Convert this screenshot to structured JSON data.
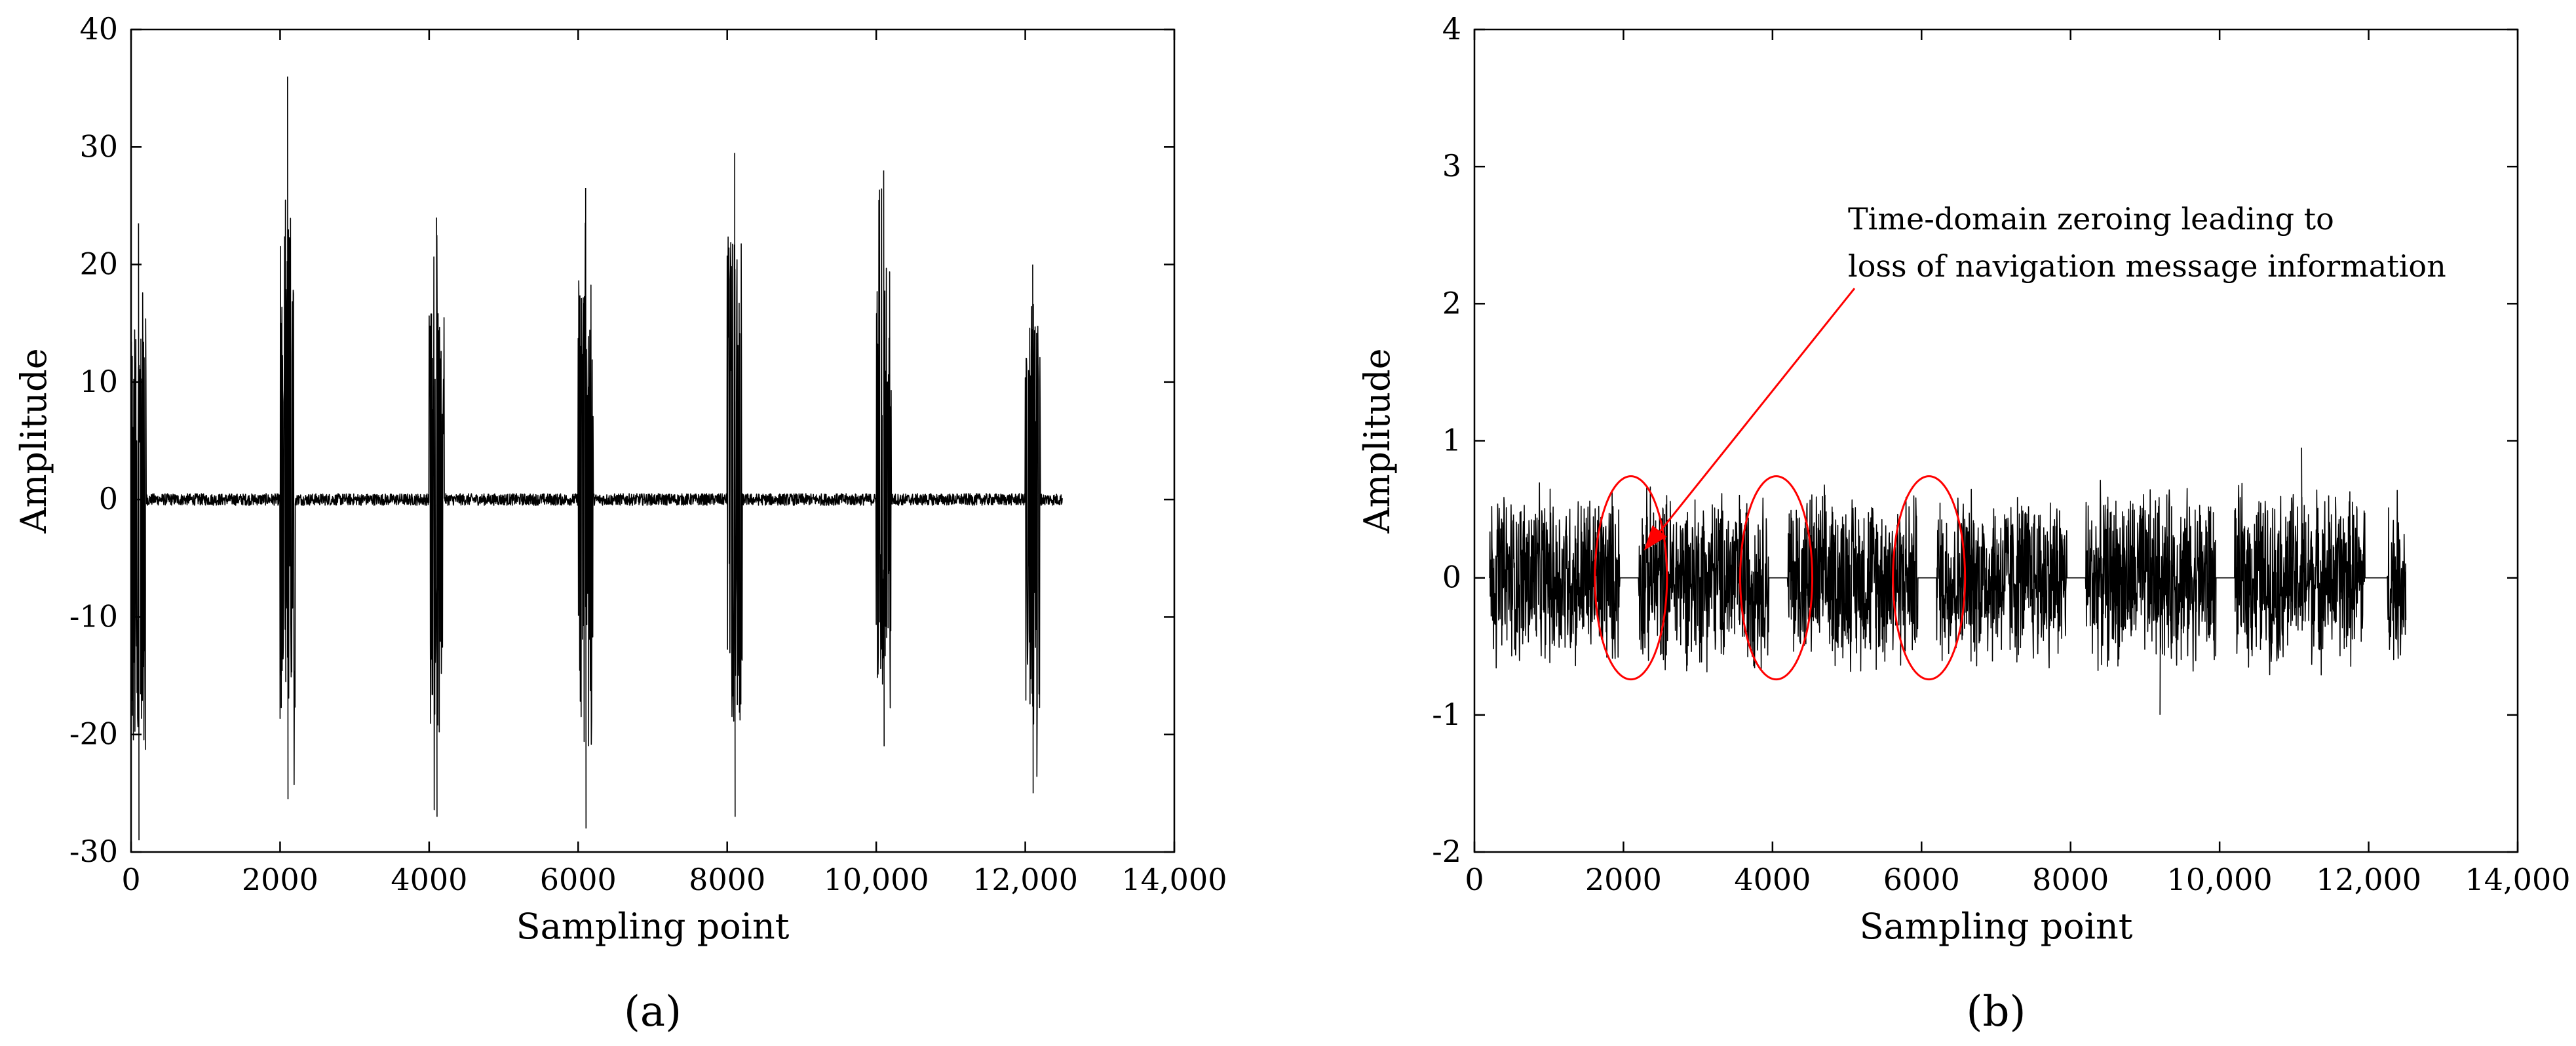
{
  "chart_data": [
    {
      "type": "line",
      "panel_label": "(a)",
      "xlabel": "Sampling point",
      "ylabel": "Amplitude",
      "xlim": [
        0,
        14000
      ],
      "ylim": [
        -30,
        40
      ],
      "xticks": [
        0,
        2000,
        4000,
        6000,
        8000,
        10000,
        12000,
        14000
      ],
      "xtick_labels": [
        "0",
        "2000",
        "4000",
        "6000",
        "8000",
        "10,000",
        "12,000",
        "14,000"
      ],
      "yticks": [
        -30,
        -20,
        -10,
        0,
        10,
        20,
        30,
        40
      ],
      "ytick_labels": [
        "-30",
        "-20",
        "-10",
        "0",
        "10",
        "20",
        "30",
        "40"
      ],
      "grid": false,
      "series": [
        {
          "color": "#000000",
          "x_range": [
            0,
            12500
          ],
          "baseline_amplitude": 0.5,
          "bursts": [
            {
              "x_start": 0,
              "x_end": 200,
              "max": 23.5,
              "min": -29
            },
            {
              "x_start": 2000,
              "x_end": 2200,
              "max": 36,
              "min": -25.5
            },
            {
              "x_start": 4000,
              "x_end": 4200,
              "max": 24,
              "min": -27
            },
            {
              "x_start": 6000,
              "x_end": 6200,
              "max": 26.5,
              "min": -28
            },
            {
              "x_start": 8000,
              "x_end": 8200,
              "max": 29.5,
              "min": -27
            },
            {
              "x_start": 10000,
              "x_end": 10200,
              "max": 28,
              "min": -21
            },
            {
              "x_start": 12000,
              "x_end": 12200,
              "max": 20,
              "min": -25
            }
          ]
        }
      ]
    },
    {
      "type": "line",
      "panel_label": "(b)",
      "xlabel": "Sampling point",
      "ylabel": "Amplitude",
      "xlim": [
        0,
        14000
      ],
      "ylim": [
        -2,
        4
      ],
      "xticks": [
        0,
        2000,
        4000,
        6000,
        8000,
        10000,
        12000,
        14000
      ],
      "xtick_labels": [
        "0",
        "2000",
        "4000",
        "6000",
        "8000",
        "10,000",
        "12,000",
        "14,000"
      ],
      "yticks": [
        -2,
        -1,
        0,
        1,
        2,
        3,
        4
      ],
      "ytick_labels": [
        "-2",
        "-1",
        "0",
        "1",
        "2",
        "3",
        "4"
      ],
      "grid": false,
      "series": [
        {
          "color": "#000000",
          "x_range": [
            200,
            12500
          ],
          "typical_amplitude": 0.6,
          "max": 0.95,
          "min": -1.0,
          "zeroed_gaps": [
            [
              1950,
              2200
            ],
            [
              3950,
              4200
            ],
            [
              5950,
              6200
            ],
            [
              7950,
              8200
            ],
            [
              9950,
              10200
            ],
            [
              11950,
              12250
            ]
          ]
        }
      ],
      "annotation": {
        "lines": [
          "Time-domain zeroing leading to",
          "loss of navigation message information"
        ],
        "color": "#ff0000",
        "circled_x": [
          2100,
          4050,
          6100
        ]
      }
    }
  ]
}
